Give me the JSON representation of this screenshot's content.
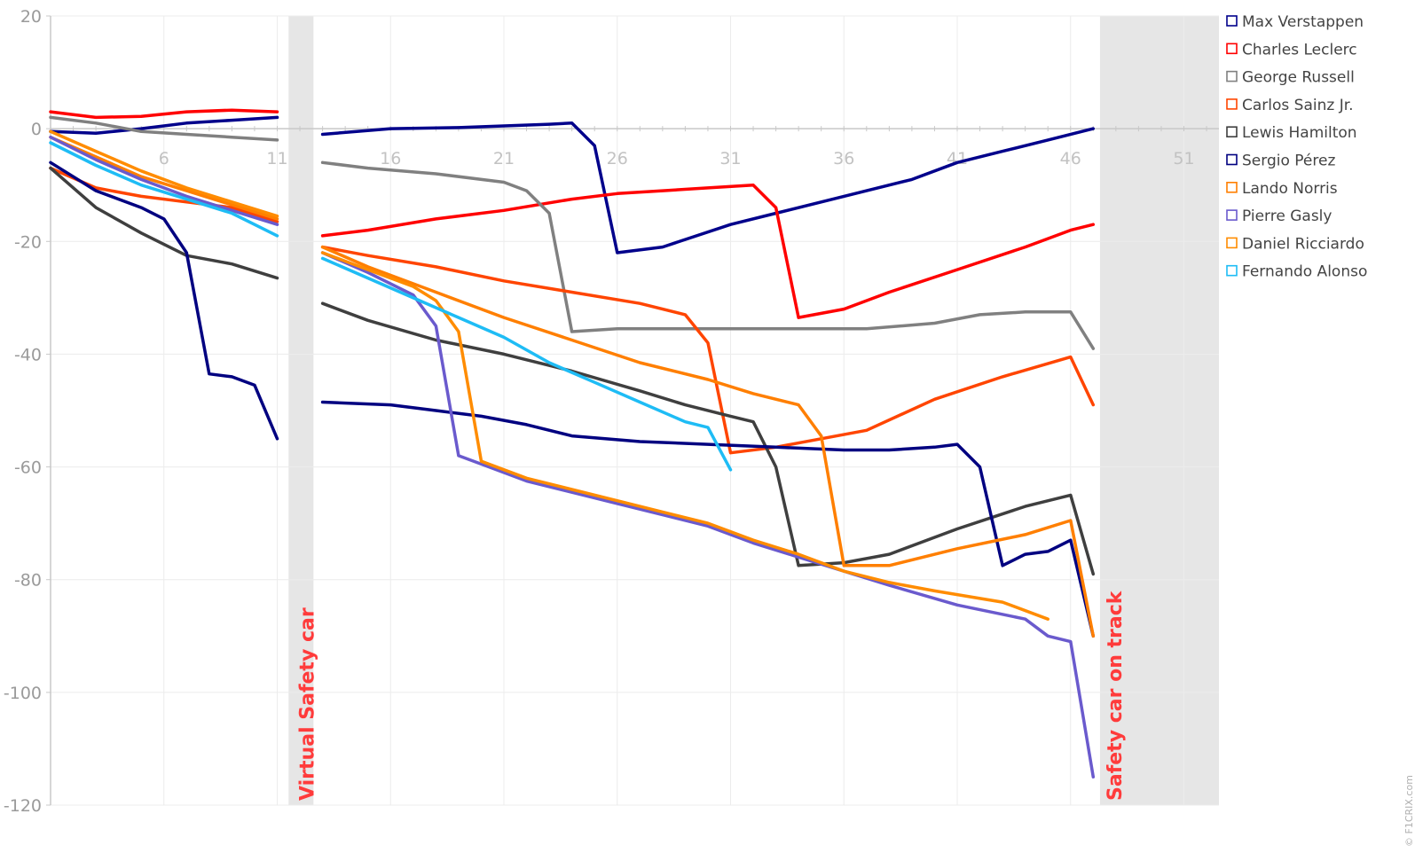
{
  "watermark": "© F1CRIX.com",
  "chart_data": {
    "type": "line",
    "xlim": [
      1,
      53
    ],
    "ylim": [
      -120,
      20
    ],
    "x_ticks": [
      6,
      11,
      16,
      21,
      26,
      31,
      36,
      41,
      46,
      51
    ],
    "y_ticks": [
      20,
      0,
      -20,
      -40,
      -60,
      -80,
      -100,
      -120
    ],
    "grid": true,
    "legend_position": "right",
    "bands": [
      {
        "label": "Virtual Safety car",
        "x_start": 11.5,
        "x_end": 12.6
      },
      {
        "label": "Safety car on track",
        "x_start": 47.3,
        "x_end": 53
      }
    ],
    "series": [
      {
        "name": "Max Verstappen",
        "color": "#00008b",
        "segments": [
          {
            "x": [
              1,
              3,
              5,
              7,
              9,
              11
            ],
            "y": [
              -0.5,
              -0.8,
              0,
              1,
              1.5,
              2
            ]
          },
          {
            "x": [
              13,
              16,
              19,
              21,
              23,
              24,
              25,
              26,
              28,
              31,
              33,
              36,
              39,
              41,
              43,
              45,
              47
            ],
            "y": [
              -1,
              0,
              0.2,
              0.5,
              0.8,
              1,
              -3,
              -22,
              -21,
              -17,
              -15,
              -12,
              -9,
              -6,
              -4,
              -2,
              0
            ]
          }
        ]
      },
      {
        "name": "Charles Leclerc",
        "color": "#ff0000",
        "segments": [
          {
            "x": [
              1,
              3,
              5,
              7,
              9,
              11
            ],
            "y": [
              3,
              2,
              2.2,
              3,
              3.3,
              3
            ]
          },
          {
            "x": [
              13,
              15,
              18,
              21,
              24,
              26,
              28,
              30,
              32,
              33,
              34,
              36,
              38,
              41,
              44,
              46,
              47
            ],
            "y": [
              -19,
              -18,
              -16,
              -14.5,
              -12.5,
              -11.5,
              -11,
              -10.5,
              -10,
              -14,
              -33.5,
              -32,
              -29,
              -25,
              -21,
              -18,
              -17
            ]
          }
        ]
      },
      {
        "name": "George Russell",
        "color": "#808080",
        "segments": [
          {
            "x": [
              1,
              3,
              5,
              7,
              9,
              11
            ],
            "y": [
              2,
              1,
              -0.5,
              -1,
              -1.5,
              -2
            ]
          },
          {
            "x": [
              13,
              15,
              18,
              21,
              22,
              23,
              24,
              26,
              28,
              31,
              34,
              37,
              40,
              42,
              44,
              46,
              47
            ],
            "y": [
              -6,
              -7,
              -8,
              -9.5,
              -11,
              -15,
              -36,
              -35.5,
              -35.5,
              -35.5,
              -35.5,
              -35.5,
              -34.5,
              -33,
              -32.5,
              -32.5,
              -39
            ]
          }
        ]
      },
      {
        "name": "Carlos Sainz Jr.",
        "color": "#ff4500",
        "segments": [
          {
            "x": [
              1,
              3,
              5,
              7,
              9,
              11
            ],
            "y": [
              -7,
              -10.5,
              -12,
              -13,
              -14,
              -16.5
            ]
          },
          {
            "x": [
              13,
              15,
              18,
              21,
              24,
              27,
              29,
              30,
              31,
              33,
              35,
              37,
              40,
              43,
              46,
              47
            ],
            "y": [
              -21,
              -22.5,
              -24.5,
              -27,
              -29,
              -31,
              -33,
              -38,
              -57.5,
              -56.5,
              -55,
              -53.5,
              -48,
              -44,
              -40.5,
              -49
            ]
          }
        ]
      },
      {
        "name": "Lewis Hamilton",
        "color": "#3f3f3f",
        "segments": [
          {
            "x": [
              1,
              3,
              5,
              7,
              9,
              11
            ],
            "y": [
              -7,
              -14,
              -18.5,
              -22.5,
              -24,
              -26.5
            ]
          },
          {
            "x": [
              13,
              15,
              18,
              21,
              24,
              27,
              29,
              31,
              32,
              33,
              34,
              36,
              38,
              41,
              44,
              46,
              47
            ],
            "y": [
              -31,
              -34,
              -37.5,
              -40,
              -43,
              -46.5,
              -49,
              -51,
              -52,
              -60,
              -77.5,
              -77,
              -75.5,
              -71,
              -67,
              -65,
              -79
            ]
          }
        ]
      },
      {
        "name": "Sergio Pérez",
        "color": "#000080",
        "segments": [
          {
            "x": [
              1,
              3,
              5,
              6,
              7,
              8,
              9,
              10,
              11
            ],
            "y": [
              -6,
              -11,
              -14,
              -16,
              -22,
              -43.5,
              -44,
              -45.5,
              -55
            ]
          },
          {
            "x": [
              13,
              16,
              18,
              20,
              22,
              24,
              27,
              30,
              33,
              36,
              38,
              40,
              41,
              42,
              43,
              44,
              45,
              46,
              47
            ],
            "y": [
              -48.5,
              -49,
              -50,
              -51,
              -52.5,
              -54.5,
              -55.5,
              -56,
              -56.5,
              -57,
              -57,
              -56.5,
              -56,
              -60,
              -77.5,
              -75.5,
              -75,
              -73,
              -90
            ]
          }
        ]
      },
      {
        "name": "Lando Norris",
        "color": "#ff7f00",
        "segments": [
          {
            "x": [
              1,
              3,
              5,
              7,
              9,
              11
            ],
            "y": [
              -1.5,
              -5,
              -8.5,
              -11,
              -13.5,
              -16
            ]
          },
          {
            "x": [
              13,
              15,
              18,
              21,
              24,
              27,
              30,
              32,
              34,
              35,
              36,
              38,
              41,
              44,
              46,
              47
            ],
            "y": [
              -21,
              -24.5,
              -29,
              -33.5,
              -37.5,
              -41.5,
              -44.5,
              -47,
              -49,
              -54.5,
              -77.5,
              -77.5,
              -74.5,
              -72,
              -69.5,
              -90
            ]
          }
        ]
      },
      {
        "name": "Pierre Gasly",
        "color": "#6a5acd",
        "segments": [
          {
            "x": [
              1,
              3,
              5,
              7,
              9,
              11
            ],
            "y": [
              -1.5,
              -5.5,
              -9,
              -12,
              -14.5,
              -17
            ]
          },
          {
            "x": [
              13,
              15,
              17,
              18,
              19,
              20,
              22,
              24,
              26,
              28,
              30,
              32,
              34,
              36,
              38,
              41,
              44,
              45,
              46,
              47
            ],
            "y": [
              -22,
              -25.5,
              -29.5,
              -35,
              -58,
              -59.5,
              -62.5,
              -64.5,
              -66.5,
              -68.5,
              -70.5,
              -73.5,
              -76,
              -78.5,
              -81,
              -84.5,
              -87,
              -90,
              -91,
              -115
            ]
          }
        ]
      },
      {
        "name": "Daniel Ricciardo",
        "color": "#ff8c00",
        "segments": [
          {
            "x": [
              1,
              3,
              5,
              7,
              9,
              11
            ],
            "y": [
              -0.5,
              -4,
              -7.5,
              -10.5,
              -13,
              -15.5
            ]
          },
          {
            "x": [
              13,
              15,
              17,
              18,
              19,
              20,
              22,
              24,
              26,
              28,
              30,
              32,
              34,
              36,
              38,
              40,
              43,
              45
            ],
            "y": [
              -22,
              -25,
              -28,
              -30.5,
              -36,
              -59,
              -62,
              -64,
              -66,
              -68,
              -70,
              -73,
              -75.5,
              -78.5,
              -80.5,
              -82,
              -84,
              -87
            ]
          }
        ]
      },
      {
        "name": "Fernando Alonso",
        "color": "#1ebcf5",
        "segments": [
          {
            "x": [
              1,
              3,
              5,
              7,
              9,
              11
            ],
            "y": [
              -2.5,
              -6.5,
              -10,
              -12.5,
              -15,
              -19
            ]
          },
          {
            "x": [
              13,
              15,
              17,
              19,
              21,
              23,
              25,
              27,
              29,
              30,
              31
            ],
            "y": [
              -23,
              -26.5,
              -30,
              -33.5,
              -37,
              -41.5,
              -45,
              -48.5,
              -52,
              -53,
              -60.5
            ]
          }
        ]
      }
    ]
  }
}
